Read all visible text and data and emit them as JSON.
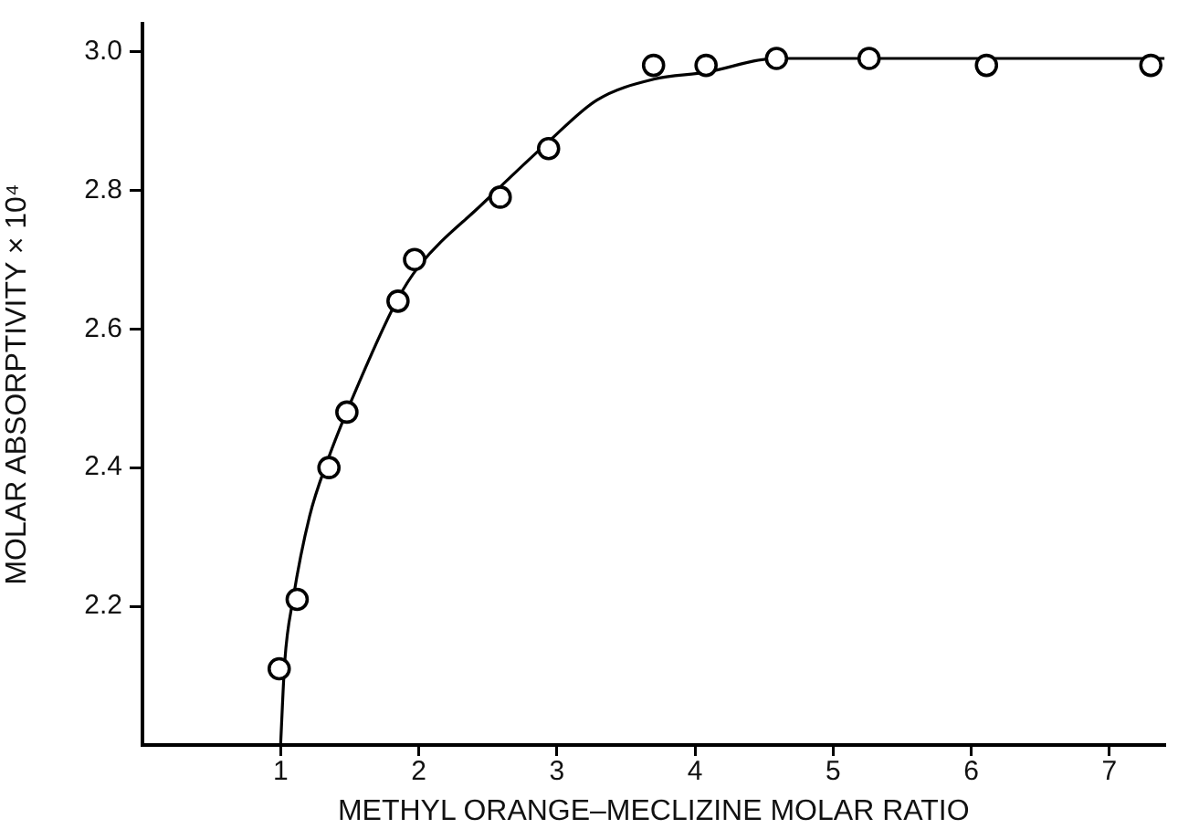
{
  "chart_data": {
    "type": "scatter",
    "xlabel": "METHYL ORANGE–MECLIZINE MOLAR RATIO",
    "ylabel": "MOLAR ABSORPTIVITY × 10⁴",
    "xlim": [
      0,
      7.4
    ],
    "xticks": [
      1,
      2,
      3,
      4,
      5,
      6,
      7
    ],
    "ylim": [
      2.0,
      3.04
    ],
    "yticks": [
      {
        "value": 2.2,
        "label": "2.2"
      },
      {
        "value": 2.4,
        "label": "2.4"
      },
      {
        "value": 2.6,
        "label": "2.6"
      },
      {
        "value": 2.8,
        "label": "2.8"
      },
      {
        "value": 3.0,
        "label": "3.0"
      }
    ],
    "grid": false,
    "marker": "circle",
    "series": [
      {
        "type": "scatter",
        "color": "#000000",
        "x": [
          0.99,
          1.12,
          1.35,
          1.48,
          1.85,
          1.97,
          2.59,
          2.94,
          3.7,
          4.08,
          4.59,
          5.26,
          6.11,
          7.3
        ],
        "values": [
          2.11,
          2.21,
          2.4,
          2.48,
          2.64,
          2.7,
          2.79,
          2.86,
          2.98,
          2.98,
          2.99,
          2.99,
          2.98,
          2.98
        ]
      },
      {
        "type": "line",
        "color": "#000000",
        "line_style": "solid",
        "marker": "none",
        "x": [
          1.0,
          1.03,
          1.09,
          1.21,
          1.34,
          1.52,
          1.84,
          2.0,
          2.46,
          2.94,
          3.29,
          3.7,
          4.08,
          4.59,
          5.5,
          6.5,
          7.4
        ],
        "values": [
          2.0,
          2.12,
          2.21,
          2.33,
          2.41,
          2.5,
          2.64,
          2.69,
          2.78,
          2.87,
          2.93,
          2.96,
          2.97,
          2.99,
          2.99,
          2.99,
          2.99
        ]
      }
    ]
  }
}
